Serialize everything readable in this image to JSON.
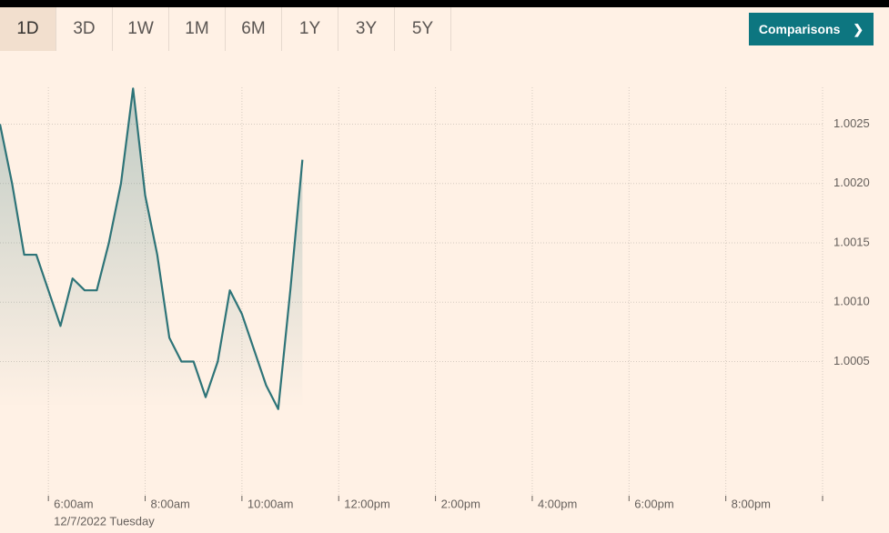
{
  "tabs": [
    "1D",
    "3D",
    "1W",
    "1M",
    "6M",
    "1Y",
    "3Y",
    "5Y"
  ],
  "button": {
    "label": "Comparisons",
    "icon": "❯"
  },
  "chart_data": {
    "type": "line",
    "date_label": "12/7/2022 Tuesday",
    "x": [
      5,
      5.25,
      5.5,
      5.75,
      6,
      6.25,
      6.5,
      6.75,
      7,
      7.25,
      7.5,
      7.75,
      8,
      8.25,
      8.5,
      8.75,
      9,
      9.25,
      9.5,
      9.75,
      10,
      10.25,
      10.5,
      10.75,
      11,
      11.25
    ],
    "values": [
      1.0025,
      1.002,
      1.0014,
      1.0014,
      1.0011,
      1.0008,
      1.0012,
      1.0011,
      1.0011,
      1.0015,
      1.002,
      1.0028,
      1.0019,
      1.0014,
      1.0007,
      1.0005,
      1.0005,
      1.0002,
      1.0005,
      1.0011,
      1.0009,
      1.0006,
      1.0003,
      1.0001,
      1.0011,
      1.0022
    ],
    "color": "#2e7478",
    "xlim": [
      5,
      22
    ],
    "xticks": [
      {
        "value": 6,
        "label": "6:00am"
      },
      {
        "value": 8,
        "label": "8:00am"
      },
      {
        "value": 10,
        "label": "10:00am"
      },
      {
        "value": 12,
        "label": "12:00pm"
      },
      {
        "value": 14,
        "label": "2:00pm"
      },
      {
        "value": 16,
        "label": "4:00pm"
      },
      {
        "value": 18,
        "label": "6:00pm"
      },
      {
        "value": 20,
        "label": "8:00pm"
      }
    ],
    "ylim": [
      0.99937,
      1.00281
    ],
    "yticks": [
      1.0005,
      {
        "value": 1.001,
        "label": "1.0010"
      },
      1.0015,
      {
        "value": 1.002,
        "label": "1.0020"
      },
      1.0025
    ],
    "grid": true
  }
}
